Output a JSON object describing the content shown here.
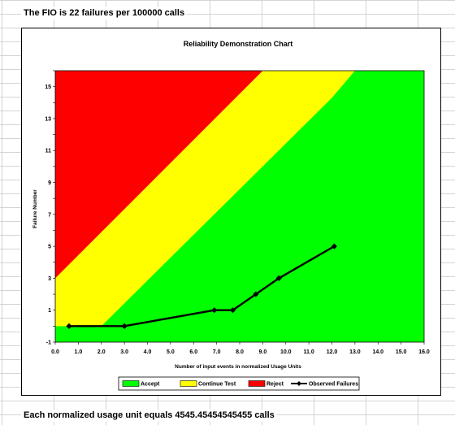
{
  "header_text": "The FIO is 22 failures per 100000 calls",
  "footer_text": "Each normalized usage unit equals 4545.45454545455 calls",
  "chart_data": {
    "type": "line",
    "title": "Reliability Demonstration Chart",
    "xlabel": "Number of input events in normalized Usage Units",
    "ylabel": "Failure Number",
    "xlim": [
      0,
      16
    ],
    "ylim": [
      -1,
      16
    ],
    "x_ticks": [
      "0.0",
      "1.0",
      "2.0",
      "3.0",
      "4.0",
      "5.0",
      "6.0",
      "7.0",
      "8.0",
      "9.0",
      "10.0",
      "11.0",
      "12.0",
      "13.0",
      "14.0",
      "15.0",
      "16.0"
    ],
    "y_ticks": [
      "-1",
      "1",
      "3",
      "5",
      "7",
      "9",
      "11",
      "13",
      "15"
    ],
    "regions": [
      {
        "name": "Reject",
        "color": "#ff0000",
        "boundary": [
          [
            0,
            3
          ],
          [
            9.0,
            16
          ]
        ]
      },
      {
        "name": "Continue Test",
        "color": "#ffff00",
        "boundary": [
          [
            0,
            0
          ],
          [
            2.0,
            0
          ],
          [
            12.0,
            14.3
          ],
          [
            13.0,
            16
          ]
        ]
      },
      {
        "name": "Accept",
        "color": "#00ff00"
      }
    ],
    "series": [
      {
        "name": "Observed Failures",
        "color": "#000000",
        "marker": "diamond",
        "points": [
          [
            0.6,
            0
          ],
          [
            3.0,
            0
          ],
          [
            6.9,
            1
          ],
          [
            7.7,
            1
          ],
          [
            8.7,
            2
          ],
          [
            9.7,
            3
          ],
          [
            12.1,
            5
          ]
        ]
      }
    ],
    "legend": {
      "position": "bottom",
      "items": [
        "Accept",
        "Continue Test",
        "Reject",
        "Observed Failures"
      ]
    },
    "grid": false
  }
}
